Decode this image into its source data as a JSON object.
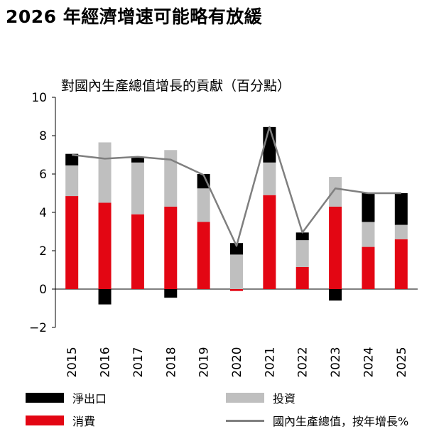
{
  "header": {
    "title": "2026 年經濟增速可能略有放緩"
  },
  "chart_data": {
    "type": "bar",
    "stacked": true,
    "title": "對國內生產總值增長的貢獻（百分點）",
    "xlabel": "",
    "ylabel": "",
    "ylim": [
      -2,
      10
    ],
    "yticks": [
      "−2",
      "0",
      "2",
      "4",
      "6",
      "8",
      "10"
    ],
    "ytick_values": [
      -2,
      0,
      2,
      4,
      6,
      8,
      10
    ],
    "categories": [
      "2015",
      "2016",
      "2017",
      "2018",
      "2019",
      "2020",
      "2021",
      "2022",
      "2023",
      "2024",
      "2025"
    ],
    "series": [
      {
        "name": "消費",
        "kind": "bar",
        "color": "#e30613",
        "values": [
          4.85,
          4.5,
          3.9,
          4.3,
          3.5,
          -0.1,
          4.9,
          1.15,
          4.3,
          2.2,
          2.6
        ]
      },
      {
        "name": "投資",
        "kind": "bar",
        "color": "#bfbfbf",
        "values": [
          1.6,
          3.15,
          2.7,
          2.95,
          1.75,
          1.8,
          1.7,
          1.4,
          1.55,
          1.3,
          0.75
        ]
      },
      {
        "name": "淨出口",
        "kind": "bar",
        "color": "#000000",
        "values": [
          0.6,
          -0.8,
          0.3,
          -0.45,
          0.75,
          0.6,
          1.85,
          0.4,
          -0.6,
          1.5,
          1.65
        ]
      },
      {
        "name": "國內生產總值，按年增長%",
        "kind": "line",
        "color": "#7f7f7f",
        "values": [
          7.0,
          6.8,
          6.9,
          6.75,
          5.95,
          2.25,
          8.45,
          2.95,
          5.25,
          5.0,
          5.0
        ]
      }
    ]
  },
  "legend": {
    "items": [
      {
        "label": "淨出口",
        "color": "#000000",
        "kind": "bar"
      },
      {
        "label": "投資",
        "color": "#bfbfbf",
        "kind": "bar"
      },
      {
        "label": "消費",
        "color": "#e30613",
        "kind": "bar"
      },
      {
        "label": "國內生產總值，按年增長%",
        "color": "#7f7f7f",
        "kind": "line"
      }
    ]
  }
}
